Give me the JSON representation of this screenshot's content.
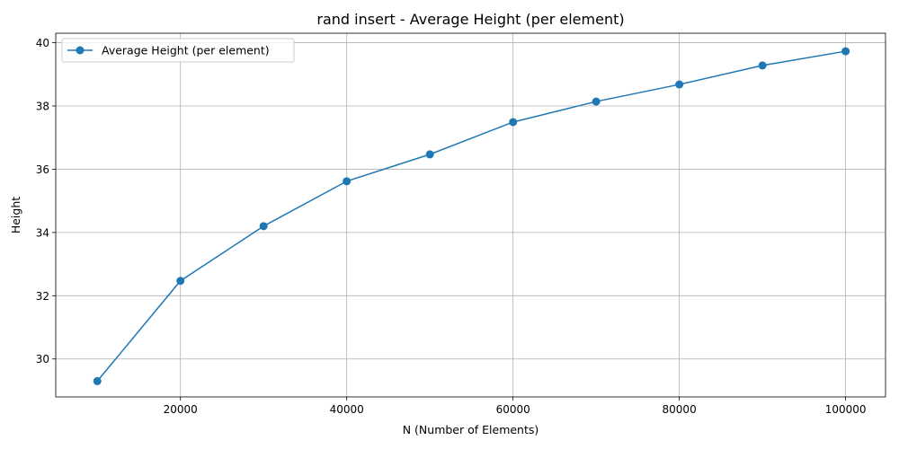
{
  "chart_data": {
    "type": "line",
    "title": "rand insert - Average Height (per element)",
    "xlabel": "N (Number of Elements)",
    "ylabel": "Height",
    "xlim": [
      5000,
      104800
    ],
    "ylim": [
      28.8,
      40.3
    ],
    "x_ticks": [
      20000,
      40000,
      60000,
      80000,
      100000
    ],
    "y_ticks": [
      30,
      32,
      34,
      36,
      38,
      40
    ],
    "grid": true,
    "legend_position": "top-left",
    "series": [
      {
        "name": "Average Height (per element)",
        "color": "#1f77b4",
        "marker": "circle",
        "x": [
          10000,
          20000,
          30000,
          40000,
          50000,
          60000,
          70000,
          80000,
          90000,
          100000
        ],
        "y": [
          29.3,
          32.47,
          34.2,
          35.62,
          36.47,
          37.49,
          38.14,
          38.68,
          39.28,
          39.73
        ]
      }
    ]
  }
}
